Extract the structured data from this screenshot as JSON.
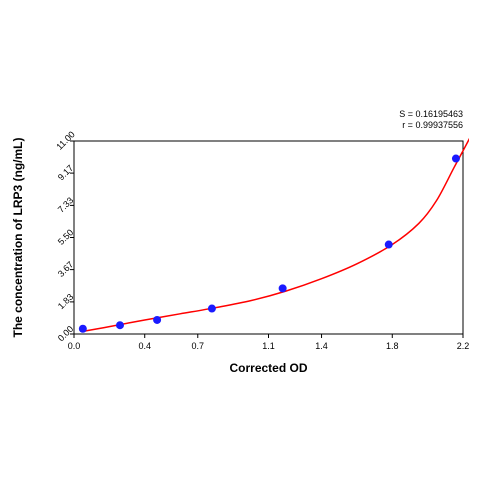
{
  "chart_data": {
    "type": "scatter",
    "xlabel": "Corrected OD",
    "ylabel": "The concentration of LRP3 (ng/mL)",
    "xlim": [
      0.0,
      2.2
    ],
    "ylim": [
      0.0,
      11.0
    ],
    "x_ticks": [
      "0.0",
      "0.4",
      "0.7",
      "1.1",
      "1.4",
      "1.8",
      "2.2"
    ],
    "y_ticks": [
      "0.00",
      "1.83",
      "3.67",
      "5.50",
      "7.33",
      "9.17",
      "11.00"
    ],
    "annotations": [
      "S = 0.16195463",
      "r = 0.99937556"
    ],
    "grid": false,
    "legend": "none",
    "series": [
      {
        "kind": "points",
        "x": [
          0.05,
          0.26,
          0.47,
          0.78,
          1.18,
          1.78,
          2.16
        ],
        "y": [
          0.3,
          0.5,
          0.8,
          1.45,
          2.6,
          5.1,
          10.0
        ],
        "color": "#1a1aff"
      },
      {
        "kind": "fit-curve",
        "x": [
          0.05,
          0.2,
          0.4,
          0.6,
          0.8,
          1.0,
          1.2,
          1.4,
          1.6,
          1.8,
          1.95,
          2.05,
          2.15,
          2.25,
          2.3
        ],
        "y": [
          0.15,
          0.42,
          0.8,
          1.15,
          1.5,
          1.9,
          2.45,
          3.15,
          4.0,
          5.1,
          6.3,
          7.6,
          9.5,
          11.4,
          12.5
        ],
        "color": "#ff0000"
      }
    ]
  }
}
